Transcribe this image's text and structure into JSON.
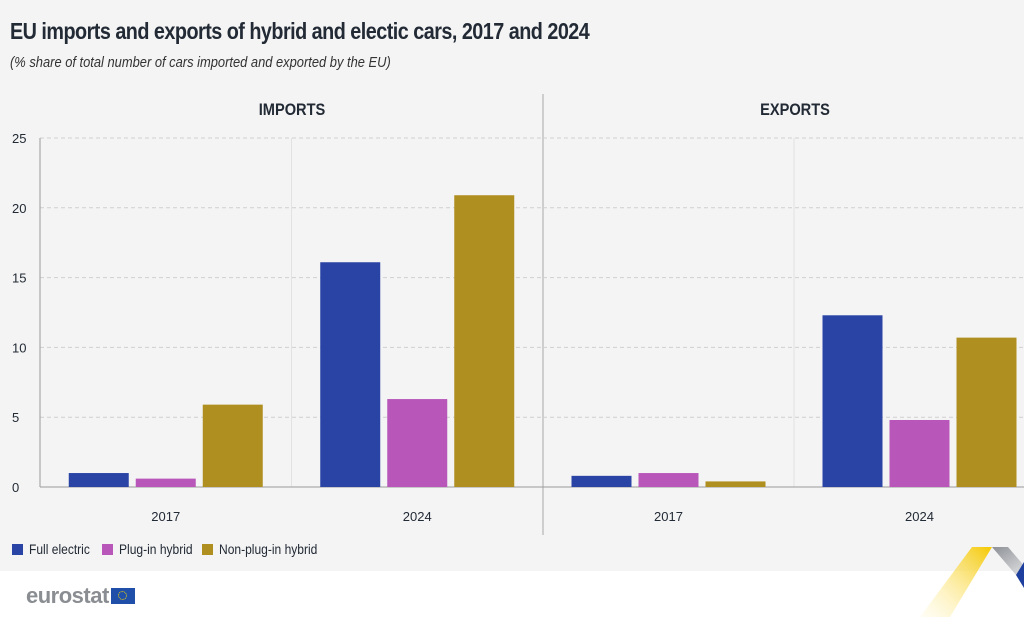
{
  "header": {
    "title": "EU imports and exports of hybrid and electic cars, 2017 and 2024",
    "subtitle": "(% share of total number of cars imported and exported by the EU)"
  },
  "colors": {
    "full_electric": "#2a44a6",
    "plug_in_hybrid": "#b857b9",
    "non_plug_in_hybrid": "#b08f21",
    "background": "#f4f4f4",
    "text": "#222a35"
  },
  "legend": [
    {
      "label": "Full electric",
      "color_key": "full_electric"
    },
    {
      "label": "Plug-in hybrid",
      "color_key": "plug_in_hybrid"
    },
    {
      "label": "Non-plug-in hybrid",
      "color_key": "non_plug_in_hybrid"
    }
  ],
  "footer": {
    "logo_text": "eurostat"
  },
  "chart_data": [
    {
      "type": "bar",
      "title": "IMPORTS",
      "categories": [
        "2017",
        "2024"
      ],
      "series": [
        {
          "name": "Full electric",
          "values": [
            1.0,
            16.1
          ]
        },
        {
          "name": "Plug-in hybrid",
          "values": [
            0.6,
            6.3
          ]
        },
        {
          "name": "Non-plug-in hybrid",
          "values": [
            5.9,
            20.9
          ]
        }
      ],
      "xlabel": "",
      "ylabel": "",
      "ylim": [
        0,
        25
      ],
      "yticks": [
        0,
        5,
        10,
        15,
        20,
        25
      ],
      "grid": true,
      "legend": "bottom-left"
    },
    {
      "type": "bar",
      "title": "EXPORTS",
      "categories": [
        "2017",
        "2024"
      ],
      "series": [
        {
          "name": "Full electric",
          "values": [
            0.8,
            12.3
          ]
        },
        {
          "name": "Plug-in hybrid",
          "values": [
            1.0,
            4.8
          ]
        },
        {
          "name": "Non-plug-in hybrid",
          "values": [
            0.4,
            10.7
          ]
        }
      ],
      "xlabel": "",
      "ylabel": "",
      "ylim": [
        0,
        25
      ],
      "yticks": [
        0,
        5,
        10,
        15,
        20,
        25
      ],
      "grid": true,
      "legend": "bottom-left"
    }
  ]
}
